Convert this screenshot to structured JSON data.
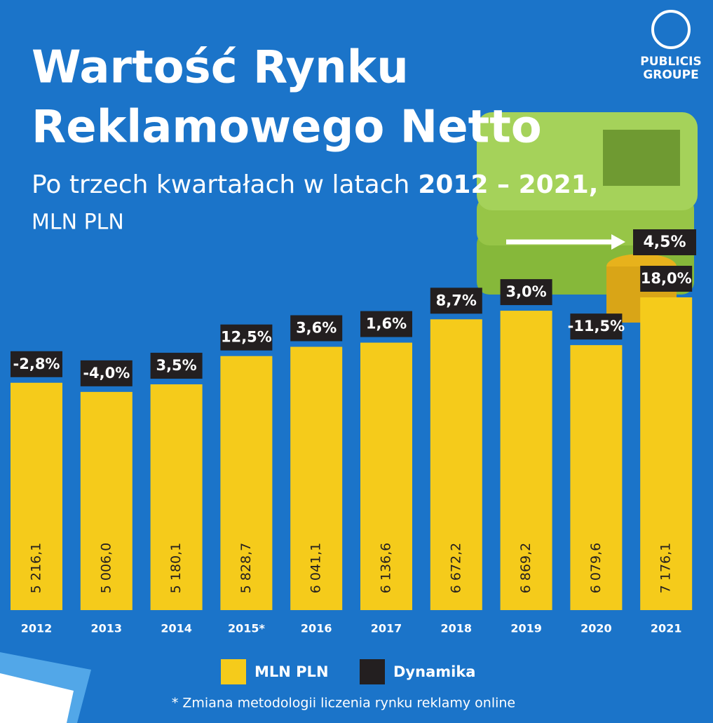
{
  "chart_data": {
    "type": "bar",
    "title": [
      "Wartość Rynku",
      "Reklamowego Netto"
    ],
    "subtitle": [
      "Po trzech kwartałach w latach",
      "2012 – 2021,"
    ],
    "unit": "MLN PLN",
    "logo": [
      "PUBLICIS",
      "GROUPE"
    ],
    "annotation": "4,5%",
    "categories": [
      "2012",
      "2013",
      "2014",
      "2015*",
      "2016",
      "2017",
      "2018",
      "2019",
      "2020",
      "2021"
    ],
    "series": [
      {
        "name": "MLN PLN",
        "color": "#f5cb1b",
        "values": [
          5216.1,
          5006.0,
          5180.1,
          5828.7,
          6041.1,
          6136.6,
          6672.2,
          6869.2,
          6079.6,
          7176.1
        ],
        "value_labels": [
          "5 216,1",
          "5 006,0",
          "5 180,1",
          "5 828,7",
          "6 041,1",
          "6 136,6",
          "6 672,2",
          "6 869,2",
          "6 079,6",
          "7 176,1"
        ]
      },
      {
        "name": "Dynamika",
        "color": "#231f20",
        "values": [
          -2.8,
          -4.0,
          3.5,
          12.5,
          3.6,
          1.6,
          8.7,
          3.0,
          -11.5,
          18.0
        ],
        "value_labels": [
          "-2,8%",
          "-4,0%",
          "3,5%",
          "12,5%",
          "3,6%",
          "1,6%",
          "8,7%",
          "3,0%",
          "-11,5%",
          "18,0%"
        ]
      }
    ],
    "footnote": "* Zmiana metodologii liczenia rynku reklamy online"
  }
}
